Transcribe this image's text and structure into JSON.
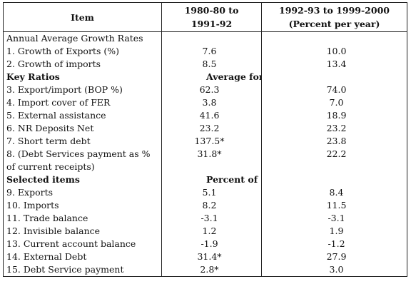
{
  "header": {
    "item": "Item",
    "col_a": [
      "1980-80 to",
      "1991-92"
    ],
    "col_b": [
      "1992-93 to 1999-2000",
      "(Percent per year)"
    ]
  },
  "rows": [
    {
      "label": "Annual Average Growth Rates",
      "a": "",
      "b": ""
    },
    {
      "label": "1. Growth of Exports (%)",
      "a": "7.6",
      "b": "10.0"
    },
    {
      "label": "2. Growth of imports",
      "a": "8.5",
      "b": "13.4"
    },
    {
      "label": "Key Ratios",
      "a": "",
      "b": ""
    },
    {
      "label": "3. Export/import (BOP %)",
      "a": "62.3",
      "b": "74.0"
    },
    {
      "label": "4. Import cover of FER",
      "a": "3.8",
      "b": "7.0"
    },
    {
      "label": "5. External assistance",
      "a": "41.6",
      "b": "18.9"
    },
    {
      "label": "6. NR Deposits Net",
      "a": "23.2",
      "b": "23.2"
    },
    {
      "label": "7. Short term debt",
      "a": "137.5*",
      "b": "23.8"
    },
    {
      "label": "8. (Debt Services payment as % of current receipts)",
      "a": "31.8*",
      "b": "22.2"
    },
    {
      "label": "Selected items",
      "a": "",
      "b": ""
    },
    {
      "label": "9. Exports",
      "a": "5.1",
      "b": "8.4"
    },
    {
      "label": "10. Imports",
      "a": "8.2",
      "b": "11.5"
    },
    {
      "label": "11. Trade balance",
      "a": "-3.1",
      "b": "-3.1"
    },
    {
      "label": "12. Invisible balance",
      "a": "1.2",
      "b": "1.9"
    },
    {
      "label": "13. Current account balance",
      "a": "-1.9",
      "b": "-1.2"
    },
    {
      "label": "14. External Debt",
      "a": "31.4*",
      "b": "27.9"
    },
    {
      "label": "15. Debt Service payment",
      "a": "2.8*",
      "b": "3.0"
    }
  ],
  "period_labels": {
    "key_ratios": "Average for the period",
    "selected_items": "Percent of GDP"
  }
}
